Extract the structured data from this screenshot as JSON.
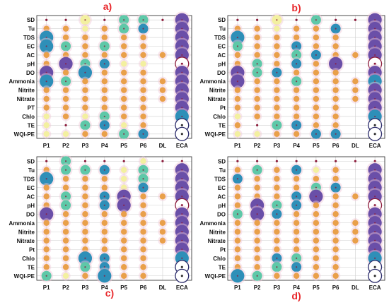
{
  "colors": {
    "small": "#f0c8d8",
    "orange": "#e9a04a",
    "yellow": "#f3f0a0",
    "teal": "#5ec8a8",
    "blue": "#2e8fb8",
    "purple": "#6a4fa8",
    "dark": "#8b1a3a",
    "ring": "#2b2b6b"
  },
  "chart_data": [
    {
      "type": "dot_matrix",
      "label": "a)",
      "x": [
        "P1",
        "P2",
        "P3",
        "P4",
        "P5",
        "P6",
        "DL",
        "ECA"
      ],
      "y": [
        "SD",
        "Tu",
        "TDS",
        "EC",
        "AC",
        "pH",
        "DO",
        "Ammonia",
        "Nitrite",
        "Nitrate",
        "PT",
        "Chlo",
        "TE",
        "WQI-PE"
      ],
      "cells": [
        [
          "dot:dark",
          "dot:dark",
          "m:yellow",
          "dot:dark",
          "m:teal",
          "m:teal",
          "dot:dark",
          "L:purple"
        ],
        [
          "s:orange",
          "s:orange",
          "s:yellow",
          "s:orange",
          "m:teal",
          "m:blue",
          "",
          "L:purple"
        ],
        [
          "L:blue",
          "s:orange",
          "s:orange",
          "s:orange",
          "s:orange",
          "s:orange",
          "",
          "L:purple"
        ],
        [
          "L:blue",
          "m:teal",
          "s:orange",
          "m:teal",
          "s:orange",
          "s:orange",
          "",
          "L:purple"
        ],
        [
          "s:orange",
          "s:orange",
          "s:orange",
          "s:orange",
          "s:orange",
          "s:orange",
          "s:orange",
          "L:purple"
        ],
        [
          "s:orange",
          "L:purple",
          "m:teal",
          "m:blue",
          "s:yellow",
          "s:yellow",
          "",
          "ring:dark"
        ],
        [
          "L:purple",
          "s:orange",
          "L:blue",
          "s:orange",
          "s:orange",
          "s:orange",
          "",
          "L:purple"
        ],
        [
          "L:blue",
          "m:teal",
          "s:orange",
          "s:orange",
          "s:orange",
          "s:orange",
          "s:orange",
          "L:purple"
        ],
        [
          "s:orange",
          "s:orange",
          "s:orange",
          "s:orange",
          "s:orange",
          "s:orange",
          "s:orange",
          "L:purple"
        ],
        [
          "s:orange",
          "s:orange",
          "s:orange",
          "s:orange",
          "s:orange",
          "s:orange",
          "s:orange",
          "L:purple"
        ],
        [
          "s:orange",
          "s:orange",
          "s:orange",
          "s:orange",
          "s:orange",
          "s:orange",
          "",
          "L:purple"
        ],
        [
          "s:yellow",
          "s:orange",
          "s:yellow",
          "m:teal",
          "s:orange",
          "s:orange",
          "",
          "L:blue"
        ],
        [
          "s:yellow",
          "dot:dark",
          "m:teal",
          "m:blue",
          "s:yellow",
          "s:orange",
          "",
          "ring:ring"
        ],
        [
          "s:yellow",
          "s:yellow",
          "s:orange",
          "s:orange",
          "m:teal",
          "m:blue",
          "",
          "ring:ring"
        ]
      ]
    },
    {
      "type": "dot_matrix",
      "label": "b)",
      "x": [
        "P1",
        "P2",
        "P3",
        "P4",
        "P5",
        "P6",
        "DL",
        "ECA"
      ],
      "y": [
        "SD",
        "Tu",
        "TDS",
        "EC",
        "AC",
        "pH",
        "DO",
        "Ammonia",
        "Nitrite",
        "Nitrate",
        "Pt",
        "Chlo",
        "TE",
        "WQI-PE"
      ],
      "cells": [
        [
          "dot:dark",
          "dot:dark",
          "m:yellow",
          "dot:dark",
          "m:teal",
          "dot:dark",
          "dot:dark",
          "L:purple"
        ],
        [
          "s:orange",
          "s:orange",
          "s:yellow",
          "s:orange",
          "s:orange",
          "m:blue",
          "",
          "L:purple"
        ],
        [
          "L:blue",
          "s:orange",
          "s:orange",
          "s:orange",
          "s:orange",
          "s:orange",
          "",
          "L:purple"
        ],
        [
          "m:teal",
          "s:orange",
          "s:orange",
          "m:blue",
          "s:orange",
          "s:orange",
          "",
          "L:purple"
        ],
        [
          "s:orange",
          "s:orange",
          "s:orange",
          "m:teal",
          "m:blue",
          "s:orange",
          "s:orange",
          "L:purple"
        ],
        [
          "s:orange",
          "m:teal",
          "s:orange",
          "m:blue",
          "s:orange",
          "L:purple",
          "",
          "ring:dark"
        ],
        [
          "L:purple",
          "m:teal",
          "m:blue",
          "s:orange",
          "s:orange",
          "s:orange",
          "",
          "L:purple"
        ],
        [
          "L:purple",
          "s:orange",
          "s:orange",
          "m:teal",
          "s:orange",
          "s:orange",
          "s:orange",
          "L:blue"
        ],
        [
          "s:orange",
          "s:orange",
          "s:orange",
          "s:orange",
          "s:orange",
          "s:orange",
          "s:orange",
          "L:purple"
        ],
        [
          "s:orange",
          "s:orange",
          "s:orange",
          "s:orange",
          "s:orange",
          "s:orange",
          "s:orange",
          "L:purple"
        ],
        [
          "s:orange",
          "s:orange",
          "s:orange",
          "s:orange",
          "s:orange",
          "s:orange",
          "",
          "L:purple"
        ],
        [
          "s:yellow",
          "s:orange",
          "s:orange",
          "s:orange",
          "s:orange",
          "s:orange",
          "",
          "L:blue"
        ],
        [
          "s:orange",
          "dot:dark",
          "m:teal",
          "m:blue",
          "s:orange",
          "s:orange",
          "",
          "ring:ring"
        ],
        [
          "s:yellow",
          "s:yellow",
          "s:orange",
          "s:orange",
          "m:blue",
          "m:blue",
          "",
          "ring:ring"
        ]
      ]
    },
    {
      "type": "dot_matrix",
      "label": "c)",
      "x": [
        "P1",
        "P2",
        "P3",
        "P4",
        "P5",
        "P6",
        "DL",
        "ECA"
      ],
      "y": [
        "SD",
        "Tu",
        "TDS",
        "EC",
        "AC",
        "pH",
        "DO",
        "Ammonia",
        "Nitrite",
        "Nitrate",
        "Pt",
        "Chlo",
        "TE",
        "WQI-PE"
      ],
      "cells": [
        [
          "dot:dark",
          "m:teal",
          "dot:dark",
          "dot:dark",
          "dot:dark",
          "s:yellow",
          "dot:dark",
          "dot:dark"
        ],
        [
          "s:orange",
          "m:teal",
          "m:teal",
          "m:blue",
          "s:yellow",
          "m:teal",
          "",
          "L:purple"
        ],
        [
          "L:blue",
          "s:orange",
          "s:orange",
          "s:orange",
          "s:yellow",
          "m:teal",
          "",
          "L:purple"
        ],
        [
          "s:orange",
          "s:orange",
          "s:orange",
          "s:orange",
          "s:yellow",
          "m:blue",
          "",
          "L:purple"
        ],
        [
          "s:orange",
          "m:teal",
          "s:orange",
          "m:blue",
          "L:purple",
          "s:orange",
          "s:orange",
          "L:purple"
        ],
        [
          "s:orange",
          "m:teal",
          "s:orange",
          "m:blue",
          "L:purple",
          "s:orange",
          "",
          "ring:dark"
        ],
        [
          "L:purple",
          "s:orange",
          "s:orange",
          "s:orange",
          "s:orange",
          "s:orange",
          "",
          "L:purple"
        ],
        [
          "s:orange",
          "s:orange",
          "s:orange",
          "s:orange",
          "s:orange",
          "s:orange",
          "s:orange",
          "L:purple"
        ],
        [
          "s:orange",
          "s:orange",
          "s:orange",
          "s:orange",
          "s:orange",
          "s:orange",
          "s:orange",
          "L:purple"
        ],
        [
          "s:orange",
          "s:orange",
          "s:orange",
          "s:orange",
          "s:orange",
          "s:orange",
          "s:orange",
          "L:purple"
        ],
        [
          "s:orange",
          "s:orange",
          "s:orange",
          "s:orange",
          "s:orange",
          "s:orange",
          "",
          "L:purple"
        ],
        [
          "s:orange",
          "s:orange",
          "L:blue",
          "m:blue",
          "s:orange",
          "s:orange",
          "",
          "L:blue"
        ],
        [
          "s:orange",
          "s:orange",
          "m:teal",
          "m:blue",
          "s:orange",
          "s:orange",
          "",
          "ring:ring"
        ],
        [
          "m:teal",
          "s:yellow",
          "s:orange",
          "L:blue",
          "s:orange",
          "s:orange",
          "",
          "ring:ring"
        ]
      ]
    },
    {
      "type": "dot_matrix",
      "label": "d)",
      "x": [
        "P1",
        "P2",
        "P3",
        "P4",
        "P5",
        "P6",
        "DL",
        "ECA"
      ],
      "y": [
        "SD",
        "Tu",
        "TDS",
        "EC",
        "AC",
        "pH",
        "DO",
        "Ammonia",
        "Nitrite",
        "Nitrate",
        "Pt",
        "Chlo",
        "TE",
        "WQI-PE"
      ],
      "cells": [
        [
          "dot:dark",
          "dot:dark",
          "dot:dark",
          "dot:dark",
          "dot:dark",
          "dot:dark",
          "dot:dark",
          "dot:dark"
        ],
        [
          "s:orange",
          "m:teal",
          "s:orange",
          "m:blue",
          "s:yellow",
          "s:orange",
          "",
          "L:purple"
        ],
        [
          "m:blue",
          "s:orange",
          "s:orange",
          "s:orange",
          "s:orange",
          "s:orange",
          "",
          "L:purple"
        ],
        [
          "s:orange",
          "s:orange",
          "s:orange",
          "s:orange",
          "m:teal",
          "m:blue",
          "",
          "L:purple"
        ],
        [
          "s:orange",
          "s:orange",
          "s:orange",
          "m:blue",
          "L:purple",
          "s:orange",
          "s:orange",
          "L:purple"
        ],
        [
          "s:orange",
          "L:purple",
          "m:teal",
          "m:blue",
          "s:orange",
          "s:orange",
          "",
          "ring:dark"
        ],
        [
          "m:teal",
          "L:purple",
          "m:blue",
          "s:orange",
          "s:orange",
          "s:orange",
          "",
          "L:purple"
        ],
        [
          "s:orange",
          "s:orange",
          "s:orange",
          "s:orange",
          "s:orange",
          "s:orange",
          "s:orange",
          "L:purple"
        ],
        [
          "s:orange",
          "s:orange",
          "s:orange",
          "s:orange",
          "s:orange",
          "s:orange",
          "s:orange",
          "L:purple"
        ],
        [
          "s:orange",
          "s:orange",
          "s:orange",
          "s:orange",
          "s:orange",
          "s:orange",
          "s:orange",
          "L:purple"
        ],
        [
          "s:orange",
          "s:orange",
          "s:orange",
          "s:orange",
          "s:orange",
          "s:orange",
          "",
          "L:purple"
        ],
        [
          "s:orange",
          "s:orange",
          "m:blue",
          "m:teal",
          "s:orange",
          "s:orange",
          "",
          "L:blue"
        ],
        [
          "s:orange",
          "s:orange",
          "m:teal",
          "m:blue",
          "s:orange",
          "s:orange",
          "",
          "ring:ring"
        ],
        [
          "L:blue",
          "m:teal",
          "s:orange",
          "s:orange",
          "s:orange",
          "s:orange",
          "",
          "ring:ring"
        ]
      ]
    }
  ]
}
